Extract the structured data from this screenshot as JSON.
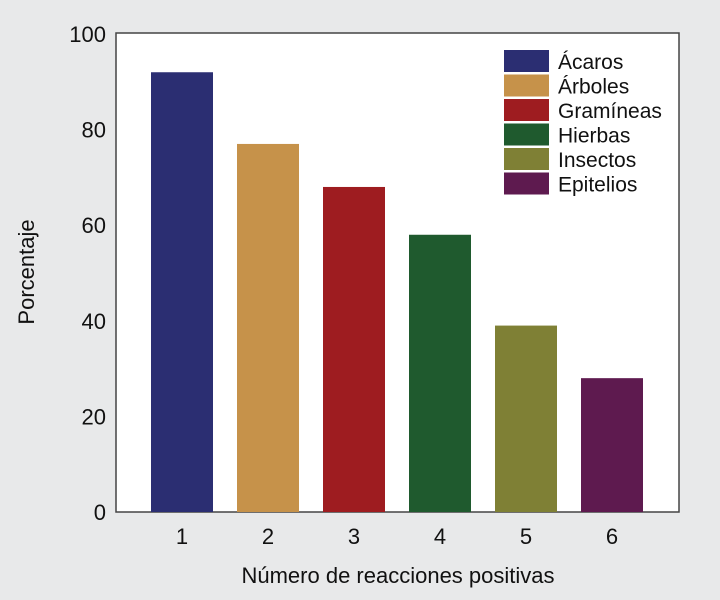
{
  "chart_data": {
    "type": "bar",
    "title": "",
    "xlabel": "Número de reacciones positivas",
    "ylabel": "Porcentaje",
    "categories": [
      "1",
      "2",
      "3",
      "4",
      "5",
      "6"
    ],
    "yticks": [
      "0",
      "20",
      "40",
      "60",
      "80",
      "100"
    ],
    "ylim": [
      0,
      100
    ],
    "grid": false,
    "legend_position": "top-right",
    "series": [
      {
        "name": "Ácaros",
        "value": 92,
        "color": "#2b2e72"
      },
      {
        "name": "Árboles",
        "value": 77,
        "color": "#c6924a"
      },
      {
        "name": "Gramíneas",
        "value": 68,
        "color": "#9e1c20"
      },
      {
        "name": "Hierbas",
        "value": 58,
        "color": "#1f5a2e"
      },
      {
        "name": "Insectos",
        "value": 39,
        "color": "#7f8035"
      },
      {
        "name": "Epitelios",
        "value": 28,
        "color": "#5e1a4f"
      }
    ]
  }
}
